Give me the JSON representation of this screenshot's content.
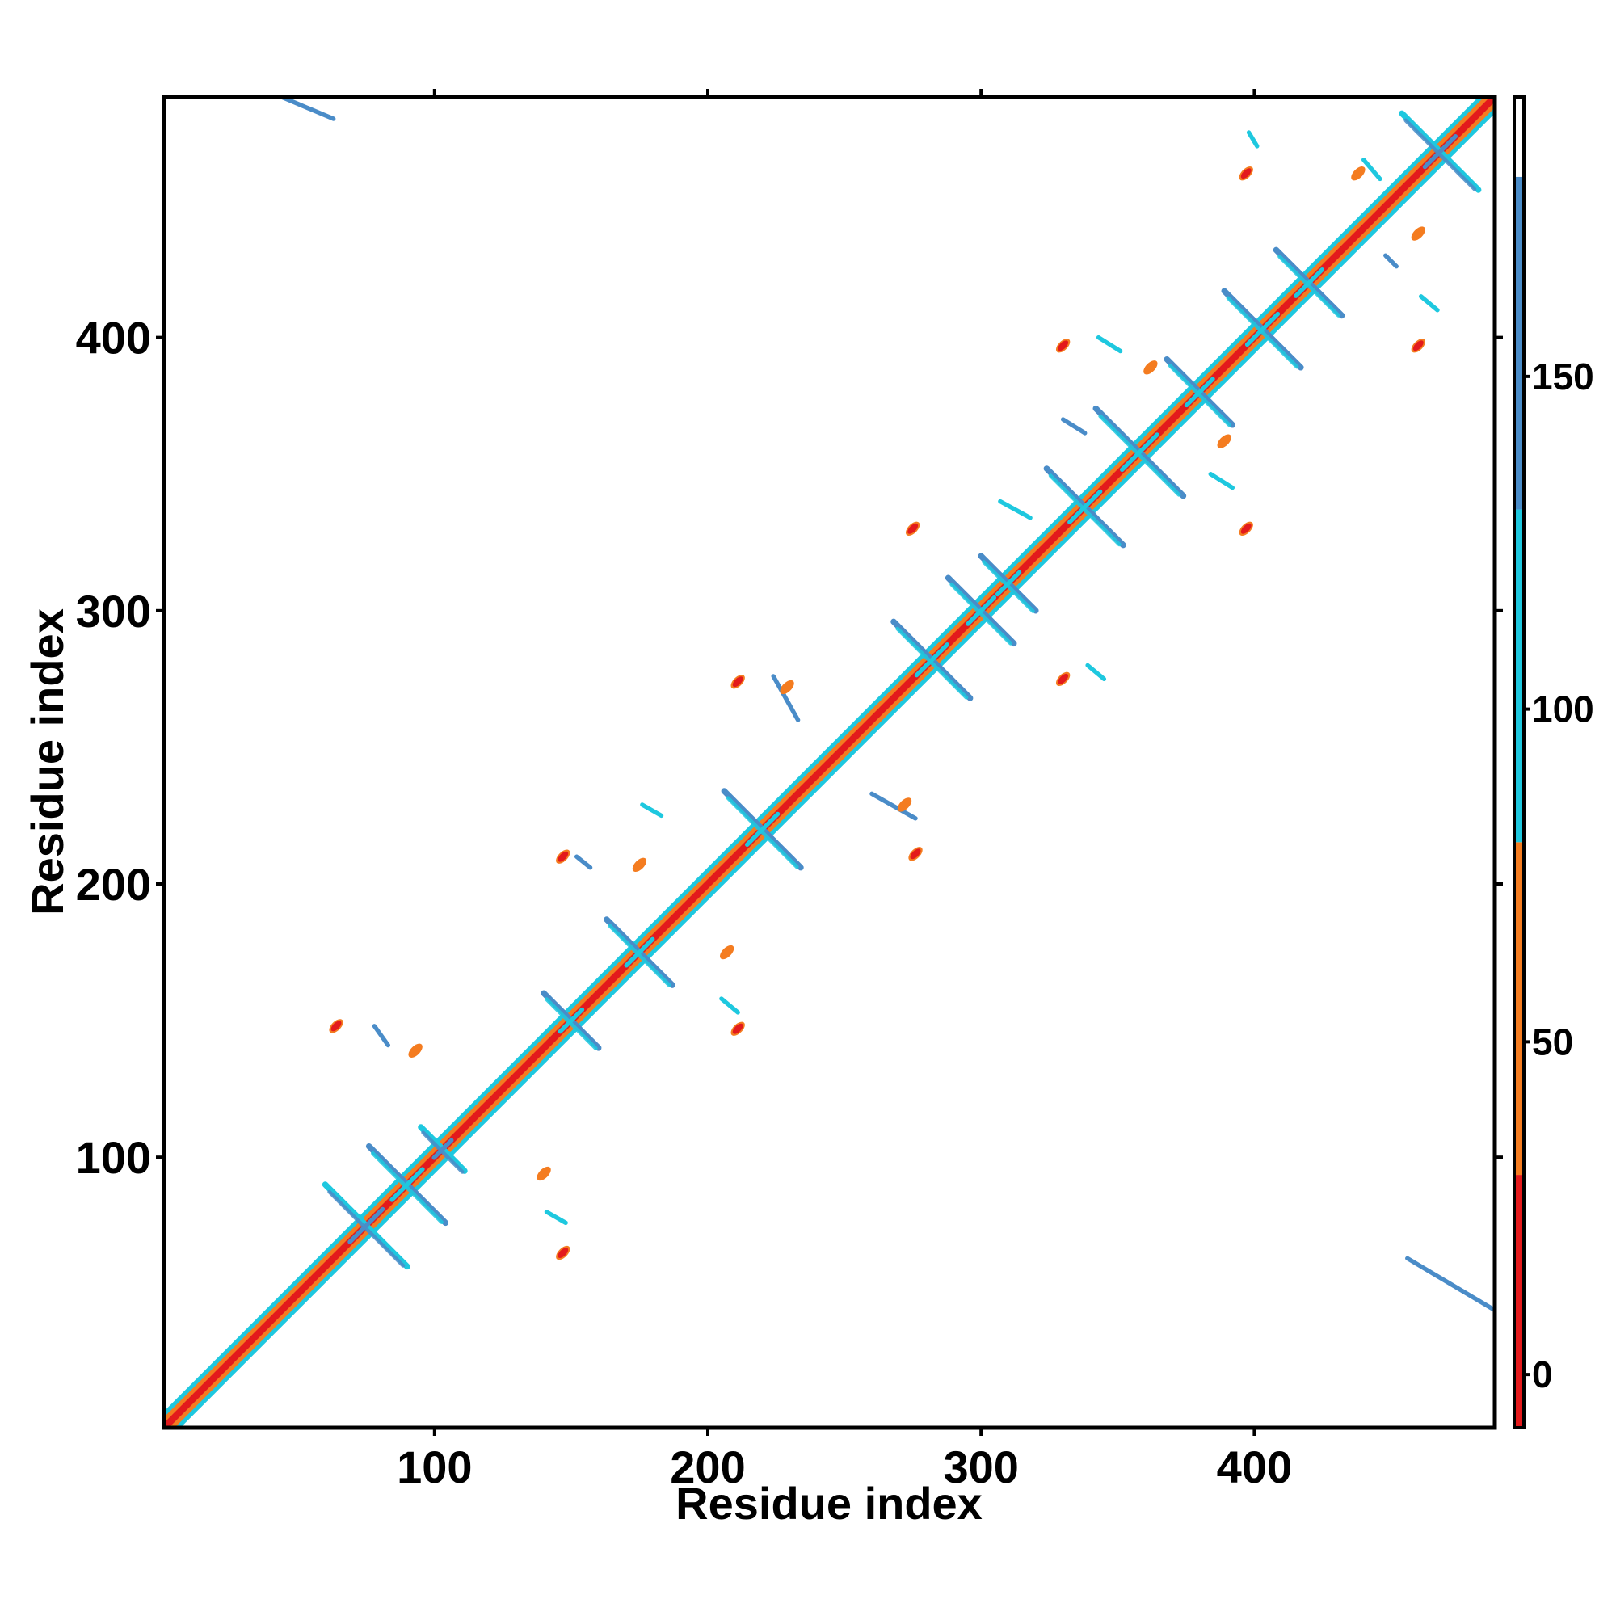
{
  "chart_data": {
    "type": "heatmap",
    "title": "",
    "xlabel": "Residue index",
    "ylabel": "Residue index",
    "xlim": [
      1,
      488
    ],
    "ylim": [
      1,
      488
    ],
    "x_ticks": [
      100,
      200,
      300,
      400
    ],
    "y_ticks": [
      100,
      200,
      300,
      400
    ],
    "x_tick_labels": [
      "100",
      "200",
      "300",
      "400"
    ],
    "y_tick_labels": [
      "100",
      "200",
      "300",
      "400"
    ],
    "grid": false,
    "colorbar": {
      "range": [
        -8,
        192
      ],
      "ticks": [
        0,
        50,
        100,
        150
      ],
      "tick_labels": [
        "0",
        "50",
        "100",
        "150"
      ],
      "segments": [
        {
          "from": -8,
          "to": 30,
          "color": "#e31a1c"
        },
        {
          "from": 30,
          "to": 80,
          "color": "#f47c20"
        },
        {
          "from": 80,
          "to": 130,
          "color": "#1ec8df"
        },
        {
          "from": 130,
          "to": 180,
          "color": "#4a8cc8"
        },
        {
          "from": 180,
          "to": 192,
          "color": "#ffffff"
        }
      ]
    },
    "diagonal": {
      "from": 1,
      "to": 488,
      "bands": [
        {
          "offset": 0,
          "color": "#e31a1c"
        },
        {
          "offset": 1.5,
          "color": "#f47c20"
        },
        {
          "offset": 3,
          "color": "#1ec8df"
        }
      ]
    },
    "x_motifs": [
      {
        "x": 75,
        "y": 75,
        "len": 15,
        "colors": [
          "#1ec8df",
          "#4a8cc8"
        ]
      },
      {
        "x": 90,
        "y": 90,
        "len": 14,
        "colors": [
          "#4a8cc8",
          "#1ec8df"
        ]
      },
      {
        "x": 103,
        "y": 103,
        "len": 8,
        "colors": [
          "#1ec8df",
          "#4a8cc8"
        ]
      },
      {
        "x": 150,
        "y": 150,
        "len": 10,
        "colors": [
          "#4a8cc8",
          "#1ec8df"
        ]
      },
      {
        "x": 175,
        "y": 175,
        "len": 12,
        "colors": [
          "#4a8cc8",
          "#1ec8df"
        ]
      },
      {
        "x": 220,
        "y": 220,
        "len": 14,
        "colors": [
          "#4a8cc8",
          "#1ec8df"
        ]
      },
      {
        "x": 282,
        "y": 282,
        "len": 14,
        "colors": [
          "#4a8cc8",
          "#1ec8df"
        ]
      },
      {
        "x": 300,
        "y": 300,
        "len": 12,
        "colors": [
          "#4a8cc8",
          "#1ec8df"
        ]
      },
      {
        "x": 310,
        "y": 310,
        "len": 10,
        "colors": [
          "#4a8cc8",
          "#1ec8df"
        ]
      },
      {
        "x": 338,
        "y": 338,
        "len": 14,
        "colors": [
          "#4a8cc8",
          "#1ec8df"
        ]
      },
      {
        "x": 358,
        "y": 358,
        "len": 16,
        "colors": [
          "#4a8cc8",
          "#1ec8df"
        ]
      },
      {
        "x": 380,
        "y": 380,
        "len": 12,
        "colors": [
          "#4a8cc8",
          "#1ec8df"
        ]
      },
      {
        "x": 403,
        "y": 403,
        "len": 14,
        "colors": [
          "#4a8cc8",
          "#1ec8df"
        ]
      },
      {
        "x": 420,
        "y": 420,
        "len": 12,
        "colors": [
          "#4a8cc8",
          "#1ec8df"
        ]
      },
      {
        "x": 468,
        "y": 468,
        "len": 14,
        "colors": [
          "#1ec8df",
          "#4a8cc8"
        ]
      }
    ],
    "blobs": [
      {
        "x": 64,
        "y": 148,
        "color": "#e31a1c"
      },
      {
        "x": 147,
        "y": 65,
        "color": "#e31a1c"
      },
      {
        "x": 147,
        "y": 210,
        "color": "#e31a1c"
      },
      {
        "x": 211,
        "y": 147,
        "color": "#e31a1c"
      },
      {
        "x": 211,
        "y": 274,
        "color": "#e31a1c"
      },
      {
        "x": 276,
        "y": 211,
        "color": "#e31a1c"
      },
      {
        "x": 275,
        "y": 330,
        "color": "#e31a1c"
      },
      {
        "x": 330,
        "y": 275,
        "color": "#e31a1c"
      },
      {
        "x": 330,
        "y": 397,
        "color": "#e31a1c"
      },
      {
        "x": 397,
        "y": 330,
        "color": "#e31a1c"
      },
      {
        "x": 397,
        "y": 460,
        "color": "#e31a1c"
      },
      {
        "x": 460,
        "y": 397,
        "color": "#e31a1c"
      },
      {
        "x": 93,
        "y": 139,
        "color": "#f47c20"
      },
      {
        "x": 140,
        "y": 94,
        "color": "#f47c20"
      },
      {
        "x": 175,
        "y": 207,
        "color": "#f47c20"
      },
      {
        "x": 207,
        "y": 175,
        "color": "#f47c20"
      },
      {
        "x": 272,
        "y": 229,
        "color": "#f47c20"
      },
      {
        "x": 229,
        "y": 272,
        "color": "#f47c20"
      },
      {
        "x": 389,
        "y": 362,
        "color": "#f47c20"
      },
      {
        "x": 362,
        "y": 389,
        "color": "#f47c20"
      },
      {
        "x": 438,
        "y": 460,
        "color": "#f47c20"
      },
      {
        "x": 460,
        "y": 438,
        "color": "#f47c20"
      }
    ],
    "strands": [
      {
        "x1": 44,
        "y1": 488,
        "x2": 63,
        "y2": 480,
        "color": "#4a8cc8"
      },
      {
        "x1": 456,
        "y1": 63,
        "x2": 488,
        "y2": 44,
        "color": "#4a8cc8"
      },
      {
        "x1": 78,
        "y1": 148,
        "x2": 83,
        "y2": 141,
        "color": "#4a8cc8"
      },
      {
        "x1": 141,
        "y1": 80,
        "x2": 148,
        "y2": 76,
        "color": "#1ec8df"
      },
      {
        "x1": 152,
        "y1": 210,
        "x2": 157,
        "y2": 206,
        "color": "#4a8cc8"
      },
      {
        "x1": 205,
        "y1": 158,
        "x2": 211,
        "y2": 153,
        "color": "#1ec8df"
      },
      {
        "x1": 224,
        "y1": 276,
        "x2": 233,
        "y2": 260,
        "color": "#4a8cc8"
      },
      {
        "x1": 260,
        "y1": 233,
        "x2": 276,
        "y2": 224,
        "color": "#4a8cc8"
      },
      {
        "x1": 307,
        "y1": 340,
        "x2": 318,
        "y2": 334,
        "color": "#1ec8df"
      },
      {
        "x1": 339,
        "y1": 280,
        "x2": 345,
        "y2": 275,
        "color": "#1ec8df"
      },
      {
        "x1": 330,
        "y1": 370,
        "x2": 338,
        "y2": 365,
        "color": "#4a8cc8"
      },
      {
        "x1": 343,
        "y1": 400,
        "x2": 351,
        "y2": 395,
        "color": "#1ec8df"
      },
      {
        "x1": 384,
        "y1": 350,
        "x2": 392,
        "y2": 345,
        "color": "#1ec8df"
      },
      {
        "x1": 398,
        "y1": 475,
        "x2": 401,
        "y2": 470,
        "color": "#1ec8df"
      },
      {
        "x1": 448,
        "y1": 430,
        "x2": 452,
        "y2": 426,
        "color": "#4a8cc8"
      },
      {
        "x1": 440,
        "y1": 465,
        "x2": 446,
        "y2": 458,
        "color": "#1ec8df"
      },
      {
        "x1": 461,
        "y1": 415,
        "x2": 467,
        "y2": 410,
        "color": "#1ec8df"
      },
      {
        "x1": 176,
        "y1": 229,
        "x2": 183,
        "y2": 225,
        "color": "#1ec8df"
      }
    ]
  }
}
